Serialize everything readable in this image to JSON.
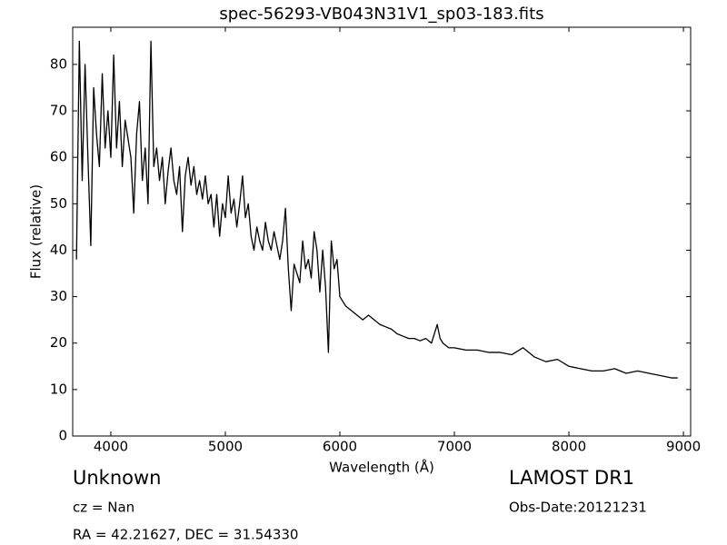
{
  "chart_data": {
    "type": "line",
    "title": "spec-56293-VB043N31V1_sp03-183.fits",
    "xlabel": "Wavelength (Å)",
    "ylabel": "Flux (relative)",
    "annotations": [
      "Unknown",
      "cz = Nan",
      "RA = 42.21627, DEC = 31.54330",
      "LAMOST DR1",
      "Obs-Date:20121231"
    ],
    "color": "#000000",
    "xlim": [
      3667,
      9063
    ],
    "ylim": [
      0,
      88
    ],
    "xticks": [
      4000,
      5000,
      6000,
      7000,
      8000,
      9000
    ],
    "yticks": [
      0,
      10,
      20,
      30,
      40,
      50,
      60,
      70,
      80
    ],
    "x": [
      3700,
      3725,
      3750,
      3775,
      3800,
      3825,
      3850,
      3875,
      3900,
      3925,
      3950,
      3975,
      4000,
      4025,
      4050,
      4075,
      4100,
      4125,
      4150,
      4175,
      4200,
      4225,
      4250,
      4275,
      4300,
      4325,
      4350,
      4375,
      4400,
      4425,
      4450,
      4475,
      4500,
      4525,
      4550,
      4575,
      4600,
      4625,
      4650,
      4675,
      4700,
      4725,
      4750,
      4775,
      4800,
      4825,
      4850,
      4875,
      4900,
      4925,
      4950,
      4975,
      5000,
      5025,
      5050,
      5075,
      5100,
      5125,
      5150,
      5175,
      5200,
      5225,
      5250,
      5275,
      5300,
      5325,
      5350,
      5375,
      5400,
      5425,
      5450,
      5475,
      5500,
      5525,
      5550,
      5575,
      5600,
      5625,
      5650,
      5675,
      5700,
      5725,
      5750,
      5775,
      5800,
      5825,
      5850,
      5875,
      5900,
      5925,
      5950,
      5975,
      6000,
      6050,
      6100,
      6150,
      6200,
      6250,
      6300,
      6350,
      6400,
      6450,
      6500,
      6550,
      6600,
      6650,
      6700,
      6750,
      6800,
      6850,
      6875,
      6900,
      6950,
      7000,
      7100,
      7200,
      7300,
      7400,
      7500,
      7600,
      7700,
      7800,
      7900,
      8000,
      8100,
      8200,
      8300,
      8400,
      8500,
      8600,
      8700,
      8800,
      8900,
      8950
    ],
    "values": [
      38,
      85,
      55,
      80,
      60,
      41,
      75,
      65,
      58,
      78,
      62,
      70,
      60,
      82,
      62,
      72,
      58,
      68,
      64,
      60,
      48,
      65,
      72,
      55,
      62,
      50,
      85,
      58,
      62,
      55,
      60,
      50,
      57,
      62,
      55,
      52,
      58,
      44,
      56,
      60,
      54,
      58,
      52,
      55,
      51,
      56,
      50,
      52,
      45,
      52,
      43,
      50,
      47,
      56,
      48,
      51,
      45,
      50,
      56,
      47,
      50,
      43,
      40,
      45,
      42,
      40,
      46,
      42,
      40,
      44,
      41,
      38,
      42,
      49,
      36,
      27,
      37,
      35,
      33,
      42,
      36,
      38,
      34,
      44,
      40,
      31,
      40,
      32,
      18,
      42,
      36,
      38,
      30,
      28,
      27,
      26,
      25,
      26,
      25,
      24,
      23.5,
      23,
      22,
      21.5,
      21,
      21,
      20.5,
      21,
      20,
      24,
      21,
      20,
      19,
      19,
      18.5,
      18.5,
      18,
      18,
      17.5,
      19,
      17,
      16,
      16.5,
      15,
      14.5,
      14,
      14,
      14.5,
      13.5,
      14,
      13.5,
      13,
      12.5,
      12.5
    ]
  }
}
